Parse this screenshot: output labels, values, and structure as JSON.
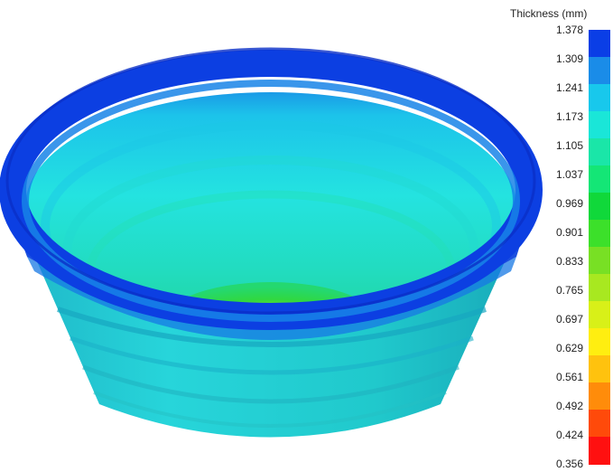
{
  "legend": {
    "title": "Thickness (mm)",
    "values": [
      "1.378",
      "1.309",
      "1.241",
      "1.173",
      "1.105",
      "1.037",
      "0.969",
      "0.901",
      "0.833",
      "0.765",
      "0.697",
      "0.629",
      "0.561",
      "0.492",
      "0.424",
      "0.356"
    ],
    "colors": [
      "#0a3ee6",
      "#1a8ce8",
      "#18c8ec",
      "#1ae6d8",
      "#1ae6a8",
      "#14e676",
      "#10d83a",
      "#3ce02a",
      "#78e024",
      "#a8e820",
      "#d8f018",
      "#ffee10",
      "#ffc20e",
      "#ff8c0a",
      "#ff4a0a",
      "#ff1010"
    ]
  }
}
